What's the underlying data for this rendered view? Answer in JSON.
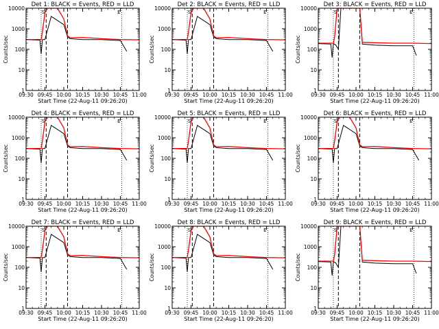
{
  "chart_data": [
    {
      "type": "line",
      "title": "Det 1: BLACK = Events, RED = LLD",
      "xlabel": "Start Time (22-Aug-11 09:26:20)",
      "ylabel": "Counts/sec",
      "xlim": [
        "09:30",
        "11:00"
      ],
      "ylim": [
        1,
        10000
      ],
      "log_y": true,
      "x_ticks": [
        "09:30",
        "09:45",
        "10:00",
        "10:15",
        "10:30",
        "10:45",
        "11:00"
      ],
      "y_ticks": [
        "1",
        "10",
        "100",
        "1000",
        "10000"
      ],
      "markers": [
        "S",
        "E"
      ],
      "dashed_lines_at": [
        "09:46",
        "10:03"
      ],
      "dotted_lines_at": [
        "09:42",
        "10:46"
      ],
      "series": [
        {
          "name": "BLACK",
          "color": "#000000",
          "x": [
            "09:30",
            "09:41",
            "09:42",
            "09:43",
            "09:45",
            "09:50",
            "10:00",
            "10:03",
            "10:05",
            "10:15",
            "10:30",
            "10:45",
            "10:50"
          ],
          "y": [
            300,
            280,
            60,
            300,
            300,
            4000,
            1600,
            400,
            330,
            300,
            300,
            270,
            80
          ]
        },
        {
          "name": "RED",
          "color": "#ff0000",
          "x": [
            "09:30",
            "09:42",
            "09:43",
            "09:45",
            "09:47",
            "09:55",
            "10:00",
            "10:03",
            "10:05",
            "10:15",
            "10:30",
            "10:45",
            "11:00"
          ],
          "y": [
            300,
            300,
            700,
            6000,
            10000,
            10000,
            3000,
            450,
            370,
            380,
            330,
            300,
            290
          ]
        }
      ]
    },
    {
      "type": "line",
      "title": "Det 2: BLACK = Events, RED = LLD",
      "xlabel": "Start Time (22-Aug-11 09:26:20)",
      "ylabel": "Counts/sec",
      "xlim": [
        "09:30",
        "11:00"
      ],
      "ylim": [
        1,
        10000
      ],
      "log_y": true,
      "x_ticks": [
        "09:30",
        "09:45",
        "10:00",
        "10:15",
        "10:30",
        "10:45",
        "11:00"
      ],
      "y_ticks": [
        "1",
        "10",
        "100",
        "1000",
        "10000"
      ],
      "markers": [
        "S",
        "E"
      ],
      "dashed_lines_at": [
        "09:46",
        "10:03"
      ],
      "dotted_lines_at": [
        "09:42",
        "10:46"
      ],
      "series": [
        {
          "name": "BLACK",
          "color": "#000000",
          "x": [
            "09:30",
            "09:41",
            "09:42",
            "09:43",
            "09:45",
            "09:50",
            "10:00",
            "10:03",
            "10:05",
            "10:15",
            "10:30",
            "10:45",
            "10:50"
          ],
          "y": [
            300,
            280,
            60,
            300,
            300,
            4000,
            1600,
            400,
            330,
            300,
            300,
            270,
            80
          ]
        },
        {
          "name": "RED",
          "color": "#ff0000",
          "x": [
            "09:30",
            "09:42",
            "09:43",
            "09:45",
            "09:47",
            "09:55",
            "10:00",
            "10:03",
            "10:05",
            "10:15",
            "10:30",
            "10:45",
            "11:00"
          ],
          "y": [
            300,
            300,
            700,
            6000,
            10000,
            10000,
            3000,
            450,
            370,
            380,
            330,
            300,
            290
          ]
        }
      ]
    },
    {
      "type": "line",
      "title": "Det 3: BLACK = Events, RED = LLD",
      "xlabel": "Start Time (22-Aug-11 09:26:20)",
      "ylabel": "Counts/sec",
      "xlim": [
        "09:30",
        "11:00"
      ],
      "ylim": [
        1,
        10000
      ],
      "log_y": true,
      "x_ticks": [
        "09:30",
        "09:45",
        "10:00",
        "10:15",
        "10:30",
        "10:45",
        "11:00"
      ],
      "y_ticks": [
        "1",
        "10",
        "100",
        "1000",
        "10000"
      ],
      "markers": [
        "S",
        "E"
      ],
      "dashed_lines_at": [
        "09:46",
        "10:03"
      ],
      "dotted_lines_at": [
        "09:42",
        "10:46"
      ],
      "series": [
        {
          "name": "BLACK",
          "color": "#000000",
          "x": [
            "09:30",
            "09:40",
            "09:41",
            "09:42",
            "09:44",
            "09:46",
            "09:48",
            "10:00",
            "10:03",
            "10:05",
            "10:15",
            "10:30",
            "10:45",
            "10:48"
          ],
          "y": [
            190,
            180,
            40,
            190,
            160,
            100,
            10000,
            10000,
            10000,
            180,
            160,
            150,
            150,
            50
          ]
        },
        {
          "name": "RED",
          "color": "#ff0000",
          "x": [
            "09:30",
            "09:42",
            "09:43",
            "09:45",
            "09:47",
            "10:00",
            "10:03",
            "10:05",
            "10:15",
            "10:30",
            "10:45",
            "11:00"
          ],
          "y": [
            200,
            200,
            400,
            10000,
            10000,
            10000,
            10000,
            220,
            210,
            200,
            200,
            190
          ]
        }
      ]
    },
    {
      "type": "line",
      "title": "Det 4: BLACK = Events, RED = LLD",
      "xlabel": "Start Time (22-Aug-11 09:26:20)",
      "ylabel": "Counts/sec",
      "xlim": [
        "09:30",
        "11:00"
      ],
      "ylim": [
        1,
        10000
      ],
      "log_y": true,
      "x_ticks": [
        "09:30",
        "09:45",
        "10:00",
        "10:15",
        "10:30",
        "10:45",
        "11:00"
      ],
      "y_ticks": [
        "1",
        "10",
        "100",
        "1000",
        "10000"
      ],
      "markers": [
        "S",
        "E"
      ],
      "dashed_lines_at": [
        "09:46",
        "10:03"
      ],
      "dotted_lines_at": [
        "09:42",
        "10:46"
      ],
      "series": [
        {
          "name": "BLACK",
          "color": "#000000",
          "x": [
            "09:30",
            "09:41",
            "09:42",
            "09:43",
            "09:45",
            "09:50",
            "10:00",
            "10:03",
            "10:05",
            "10:15",
            "10:30",
            "10:45",
            "10:50"
          ],
          "y": [
            300,
            280,
            60,
            300,
            300,
            4000,
            1600,
            400,
            330,
            300,
            300,
            270,
            80
          ]
        },
        {
          "name": "RED",
          "color": "#ff0000",
          "x": [
            "09:30",
            "09:42",
            "09:43",
            "09:45",
            "09:47",
            "09:55",
            "10:00",
            "10:03",
            "10:05",
            "10:15",
            "10:30",
            "10:45",
            "11:00"
          ],
          "y": [
            300,
            300,
            700,
            6000,
            10000,
            10000,
            3000,
            450,
            370,
            380,
            330,
            300,
            290
          ]
        }
      ]
    },
    {
      "type": "line",
      "title": "Det 5: BLACK = Events, RED = LLD",
      "xlabel": "Start Time (22-Aug-11 09:26:20)",
      "ylabel": "Counts/sec",
      "xlim": [
        "09:30",
        "11:00"
      ],
      "ylim": [
        1,
        10000
      ],
      "log_y": true,
      "x_ticks": [
        "09:30",
        "09:45",
        "10:00",
        "10:15",
        "10:30",
        "10:45",
        "11:00"
      ],
      "y_ticks": [
        "1",
        "10",
        "100",
        "1000",
        "10000"
      ],
      "markers": [
        "S",
        "E"
      ],
      "dashed_lines_at": [
        "09:46",
        "10:03"
      ],
      "dotted_lines_at": [
        "09:42",
        "10:46"
      ],
      "series": [
        {
          "name": "BLACK",
          "color": "#000000",
          "x": [
            "09:30",
            "09:41",
            "09:42",
            "09:43",
            "09:45",
            "09:50",
            "10:00",
            "10:03",
            "10:05",
            "10:15",
            "10:30",
            "10:45",
            "10:50"
          ],
          "y": [
            300,
            280,
            60,
            300,
            300,
            4000,
            1600,
            400,
            330,
            300,
            300,
            270,
            80
          ]
        },
        {
          "name": "RED",
          "color": "#ff0000",
          "x": [
            "09:30",
            "09:42",
            "09:43",
            "09:45",
            "09:47",
            "09:55",
            "10:00",
            "10:03",
            "10:05",
            "10:15",
            "10:30",
            "10:45",
            "11:00"
          ],
          "y": [
            300,
            300,
            700,
            6000,
            10000,
            10000,
            3000,
            450,
            370,
            380,
            330,
            300,
            290
          ]
        }
      ]
    },
    {
      "type": "line",
      "title": "Det 6: BLACK = Events, RED = LLD",
      "xlabel": "Start Time (22-Aug-11 09:26:20)",
      "ylabel": "Counts/sec",
      "xlim": [
        "09:30",
        "11:00"
      ],
      "ylim": [
        1,
        10000
      ],
      "log_y": true,
      "x_ticks": [
        "09:30",
        "09:45",
        "10:00",
        "10:15",
        "10:30",
        "10:45",
        "11:00"
      ],
      "y_ticks": [
        "1",
        "10",
        "100",
        "1000",
        "10000"
      ],
      "markers": [
        "S",
        "E"
      ],
      "dashed_lines_at": [
        "09:46",
        "10:03"
      ],
      "dotted_lines_at": [
        "09:42",
        "10:46"
      ],
      "series": [
        {
          "name": "BLACK",
          "color": "#000000",
          "x": [
            "09:30",
            "09:41",
            "09:42",
            "09:43",
            "09:45",
            "09:50",
            "10:00",
            "10:03",
            "10:05",
            "10:15",
            "10:30",
            "10:45",
            "10:50"
          ],
          "y": [
            300,
            280,
            60,
            300,
            300,
            4000,
            1600,
            400,
            330,
            300,
            300,
            270,
            80
          ]
        },
        {
          "name": "RED",
          "color": "#ff0000",
          "x": [
            "09:30",
            "09:42",
            "09:43",
            "09:45",
            "09:47",
            "09:55",
            "10:00",
            "10:03",
            "10:05",
            "10:15",
            "10:30",
            "10:45",
            "11:00"
          ],
          "y": [
            300,
            300,
            700,
            6000,
            10000,
            10000,
            3000,
            450,
            370,
            380,
            330,
            300,
            290
          ]
        }
      ]
    },
    {
      "type": "line",
      "title": "Det 7: BLACK = Events, RED = LLD",
      "xlabel": "Start Time (22-Aug-11 09:26:20)",
      "ylabel": "Counts/sec",
      "xlim": [
        "09:30",
        "11:00"
      ],
      "ylim": [
        1,
        10000
      ],
      "log_y": true,
      "x_ticks": [
        "09:30",
        "09:45",
        "10:00",
        "10:15",
        "10:30",
        "10:45",
        "11:00"
      ],
      "y_ticks": [
        "1",
        "10",
        "100",
        "1000",
        "10000"
      ],
      "markers": [
        "S",
        "E"
      ],
      "dashed_lines_at": [
        "09:46",
        "10:03"
      ],
      "dotted_lines_at": [
        "09:42",
        "10:46"
      ],
      "series": [
        {
          "name": "BLACK",
          "color": "#000000",
          "x": [
            "09:30",
            "09:41",
            "09:42",
            "09:43",
            "09:45",
            "09:50",
            "10:00",
            "10:03",
            "10:05",
            "10:15",
            "10:30",
            "10:45",
            "10:50"
          ],
          "y": [
            300,
            280,
            60,
            300,
            300,
            4000,
            1600,
            400,
            330,
            300,
            300,
            270,
            80
          ]
        },
        {
          "name": "RED",
          "color": "#ff0000",
          "x": [
            "09:30",
            "09:42",
            "09:43",
            "09:45",
            "09:47",
            "09:55",
            "10:00",
            "10:03",
            "10:05",
            "10:15",
            "10:30",
            "10:45",
            "11:00"
          ],
          "y": [
            300,
            300,
            700,
            6000,
            10000,
            10000,
            3000,
            450,
            370,
            380,
            330,
            300,
            290
          ]
        }
      ]
    },
    {
      "type": "line",
      "title": "Det 8: BLACK = Events, RED = LLD",
      "xlabel": "Start Time (22-Aug-11 09:26:20)",
      "ylabel": "Counts/sec",
      "xlim": [
        "09:30",
        "11:00"
      ],
      "ylim": [
        1,
        10000
      ],
      "log_y": true,
      "x_ticks": [
        "09:30",
        "09:45",
        "10:00",
        "10:15",
        "10:30",
        "10:45",
        "11:00"
      ],
      "y_ticks": [
        "1",
        "10",
        "100",
        "1000",
        "10000"
      ],
      "markers": [
        "S",
        "E"
      ],
      "dashed_lines_at": [
        "09:46",
        "10:03"
      ],
      "dotted_lines_at": [
        "09:42",
        "10:46"
      ],
      "series": [
        {
          "name": "BLACK",
          "color": "#000000",
          "x": [
            "09:30",
            "09:41",
            "09:42",
            "09:43",
            "09:45",
            "09:50",
            "10:00",
            "10:03",
            "10:05",
            "10:15",
            "10:30",
            "10:45",
            "10:50"
          ],
          "y": [
            300,
            280,
            60,
            300,
            300,
            4000,
            1600,
            400,
            330,
            300,
            300,
            270,
            80
          ]
        },
        {
          "name": "RED",
          "color": "#ff0000",
          "x": [
            "09:30",
            "09:42",
            "09:43",
            "09:45",
            "09:47",
            "09:55",
            "10:00",
            "10:03",
            "10:05",
            "10:15",
            "10:30",
            "10:45",
            "11:00"
          ],
          "y": [
            300,
            300,
            700,
            6000,
            10000,
            10000,
            3000,
            450,
            370,
            380,
            330,
            300,
            290
          ]
        }
      ]
    },
    {
      "type": "line",
      "title": "Det 9: BLACK = Events, RED = LLD",
      "xlabel": "Start Time (22-Aug-11 09:26:20)",
      "ylabel": "Counts/sec",
      "xlim": [
        "09:30",
        "11:00"
      ],
      "ylim": [
        1,
        10000
      ],
      "log_y": true,
      "x_ticks": [
        "09:30",
        "09:45",
        "10:00",
        "10:15",
        "10:30",
        "10:45",
        "11:00"
      ],
      "y_ticks": [
        "1",
        "10",
        "100",
        "1000",
        "10000"
      ],
      "markers": [
        "S",
        "E"
      ],
      "dashed_lines_at": [
        "09:46",
        "10:03"
      ],
      "dotted_lines_at": [
        "09:42",
        "10:46"
      ],
      "series": [
        {
          "name": "BLACK",
          "color": "#000000",
          "x": [
            "09:30",
            "09:40",
            "09:41",
            "09:42",
            "09:44",
            "09:46",
            "09:48",
            "10:00",
            "10:03",
            "10:05",
            "10:15",
            "10:30",
            "10:45",
            "10:48"
          ],
          "y": [
            190,
            180,
            40,
            190,
            160,
            100,
            10000,
            10000,
            10000,
            180,
            160,
            150,
            150,
            50
          ]
        },
        {
          "name": "RED",
          "color": "#ff0000",
          "x": [
            "09:30",
            "09:42",
            "09:43",
            "09:45",
            "09:47",
            "10:00",
            "10:03",
            "10:05",
            "10:15",
            "10:30",
            "10:45",
            "11:00"
          ],
          "y": [
            200,
            200,
            400,
            10000,
            10000,
            10000,
            10000,
            220,
            210,
            200,
            200,
            190
          ]
        }
      ]
    }
  ]
}
